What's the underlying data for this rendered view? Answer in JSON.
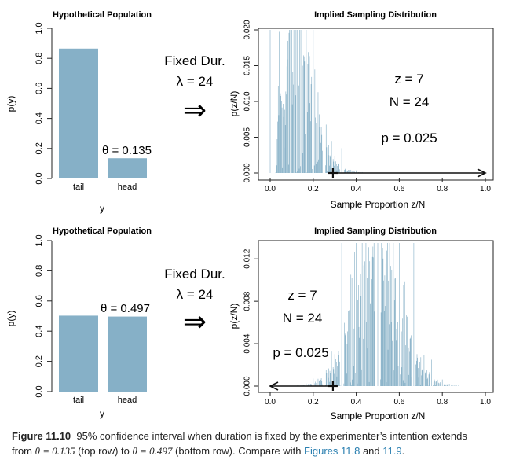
{
  "colors": {
    "bar": "#86b0c7",
    "axis": "#222222",
    "arrow": "#111111"
  },
  "rows": [
    {
      "population": {
        "title": "Hypothetical Population",
        "ylabel": "p(y)",
        "xlabel": "y",
        "yticks": [
          "0.0",
          "0.2",
          "0.4",
          "0.6",
          "0.8",
          "1.0"
        ],
        "theta_label": "θ = 0.135"
      },
      "middle": {
        "line1": "Fixed Dur.",
        "line2": "λ = 24",
        "arrow_glyph": "⇒"
      },
      "sampling": {
        "title": "Implied Sampling Distribution",
        "ylabel": "p(z/N)",
        "xlabel": "Sample Proportion z/N",
        "yticks": [
          "0.000",
          "0.005",
          "0.010",
          "0.015",
          "0.020"
        ],
        "xticks": [
          "0.0",
          "0.2",
          "0.4",
          "0.6",
          "0.8",
          "1.0"
        ],
        "z_label": "z = 7",
        "n_label": "N = 24",
        "p_label": "p = 0.025"
      }
    },
    {
      "population": {
        "title": "Hypothetical Population",
        "ylabel": "p(y)",
        "xlabel": "y",
        "yticks": [
          "0.0",
          "0.2",
          "0.4",
          "0.6",
          "0.8",
          "1.0"
        ],
        "theta_label": "θ = 0.497"
      },
      "middle": {
        "line1": "Fixed Dur.",
        "line2": "λ = 24",
        "arrow_glyph": "⇒"
      },
      "sampling": {
        "title": "Implied Sampling Distribution",
        "ylabel": "p(z/N)",
        "xlabel": "Sample Proportion z/N",
        "yticks": [
          "0.000",
          "0.004",
          "0.008",
          "0.012"
        ],
        "xticks": [
          "0.0",
          "0.2",
          "0.4",
          "0.6",
          "0.8",
          "1.0"
        ],
        "z_label": "z = 7",
        "n_label": "N = 24",
        "p_label": "p = 0.025"
      }
    }
  ],
  "chart_data": [
    {
      "type": "bar",
      "title": "Hypothetical Population",
      "xlabel": "y",
      "ylabel": "p(y)",
      "categories": [
        "tail",
        "head"
      ],
      "values": [
        0.865,
        0.135
      ],
      "ylim": [
        0,
        1
      ]
    },
    {
      "type": "bar",
      "title": "Implied Sampling Distribution",
      "xlabel": "Sample Proportion z/N",
      "ylabel": "p(z/N)",
      "xlim": [
        0,
        1
      ],
      "ylim": [
        0,
        0.02
      ],
      "lambda": 24,
      "theta": 0.135,
      "observed_z_over_n": 0.2917,
      "interval": [
        0.2917,
        1.0
      ],
      "arrow_direction": "right"
    },
    {
      "type": "bar",
      "title": "Hypothetical Population",
      "xlabel": "y",
      "ylabel": "p(y)",
      "categories": [
        "tail",
        "head"
      ],
      "values": [
        0.503,
        0.497
      ],
      "ylim": [
        0,
        1
      ]
    },
    {
      "type": "bar",
      "title": "Implied Sampling Distribution",
      "xlabel": "Sample Proportion z/N",
      "ylabel": "p(z/N)",
      "xlim": [
        0,
        1
      ],
      "ylim": [
        0,
        0.0135
      ],
      "lambda": 24,
      "theta": 0.497,
      "observed_z_over_n": 0.2917,
      "interval": [
        0.0,
        0.2917
      ],
      "arrow_direction": "left"
    }
  ],
  "caption": {
    "label": "Figure 11.10",
    "text1": "95% confidence interval when duration is fixed by the experimenter’s intention extends",
    "text2a": "from ",
    "theta1": "θ = 0.135",
    "text2b": " (top row) to ",
    "theta2": "θ = 0.497",
    "text2c": " (bottom row). Compare with ",
    "ref1": "Figures 11.8",
    "text2d": " and ",
    "ref2": "11.9",
    "text2e": "."
  }
}
